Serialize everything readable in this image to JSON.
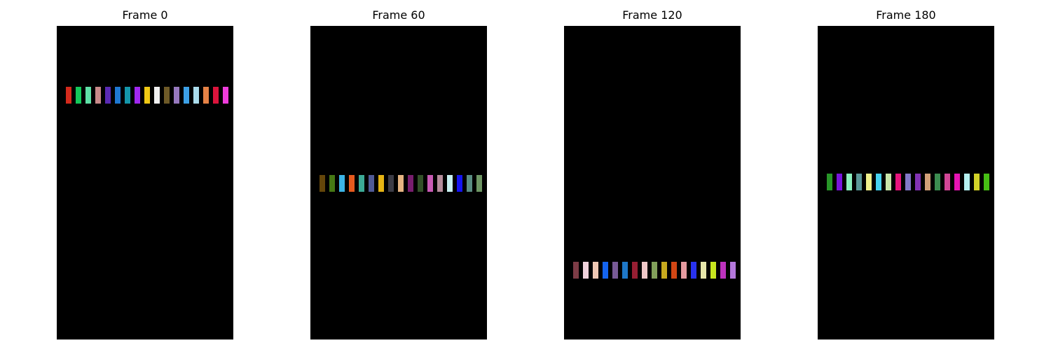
{
  "frames": [
    {
      "title": "Frame 0",
      "bars": [
        "#d42a1c",
        "#14c85a",
        "#5fe0a6",
        "#c88a8a",
        "#5a2ab4",
        "#1e78d2",
        "#1496aa",
        "#a028f0",
        "#f0c814",
        "#f0f0f0",
        "#6e5a28",
        "#9678be",
        "#3ca0e6",
        "#aadceb",
        "#e68246",
        "#dc143c",
        "#f03cdc"
      ]
    },
    {
      "title": "Frame 60",
      "bars": [
        "#64460a",
        "#467814",
        "#3cb4e6",
        "#e65a1e",
        "#3caa96",
        "#505a96",
        "#e6b414",
        "#3c3c46",
        "#e6b482",
        "#781e6e",
        "#325028",
        "#c85ab4",
        "#b48c9b",
        "#c8f0f0",
        "#1414f0",
        "#5a8c82",
        "#6e9664"
      ]
    },
    {
      "title": "Frame 120",
      "bars": [
        "#7d3c46",
        "#f0d2dc",
        "#f0c8b4",
        "#1464f0",
        "#785a96",
        "#1e78c8",
        "#961e32",
        "#f0c8c8",
        "#82a05a",
        "#c8aa1e",
        "#d24614",
        "#e69ba0",
        "#2832f0",
        "#e6e6aa",
        "#c8e61e",
        "#be32be",
        "#b478dc"
      ]
    },
    {
      "title": "Frame 180",
      "bars": [
        "#289628",
        "#7814dc",
        "#8cf0be",
        "#5a9696",
        "#f0f08c",
        "#46d2f0",
        "#c8e6aa",
        "#e6147d",
        "#8278c8",
        "#8232b4",
        "#d2a078",
        "#3c8c50",
        "#d24696",
        "#e614b4",
        "#b4f0f0",
        "#d2d228",
        "#46be14"
      ]
    }
  ]
}
